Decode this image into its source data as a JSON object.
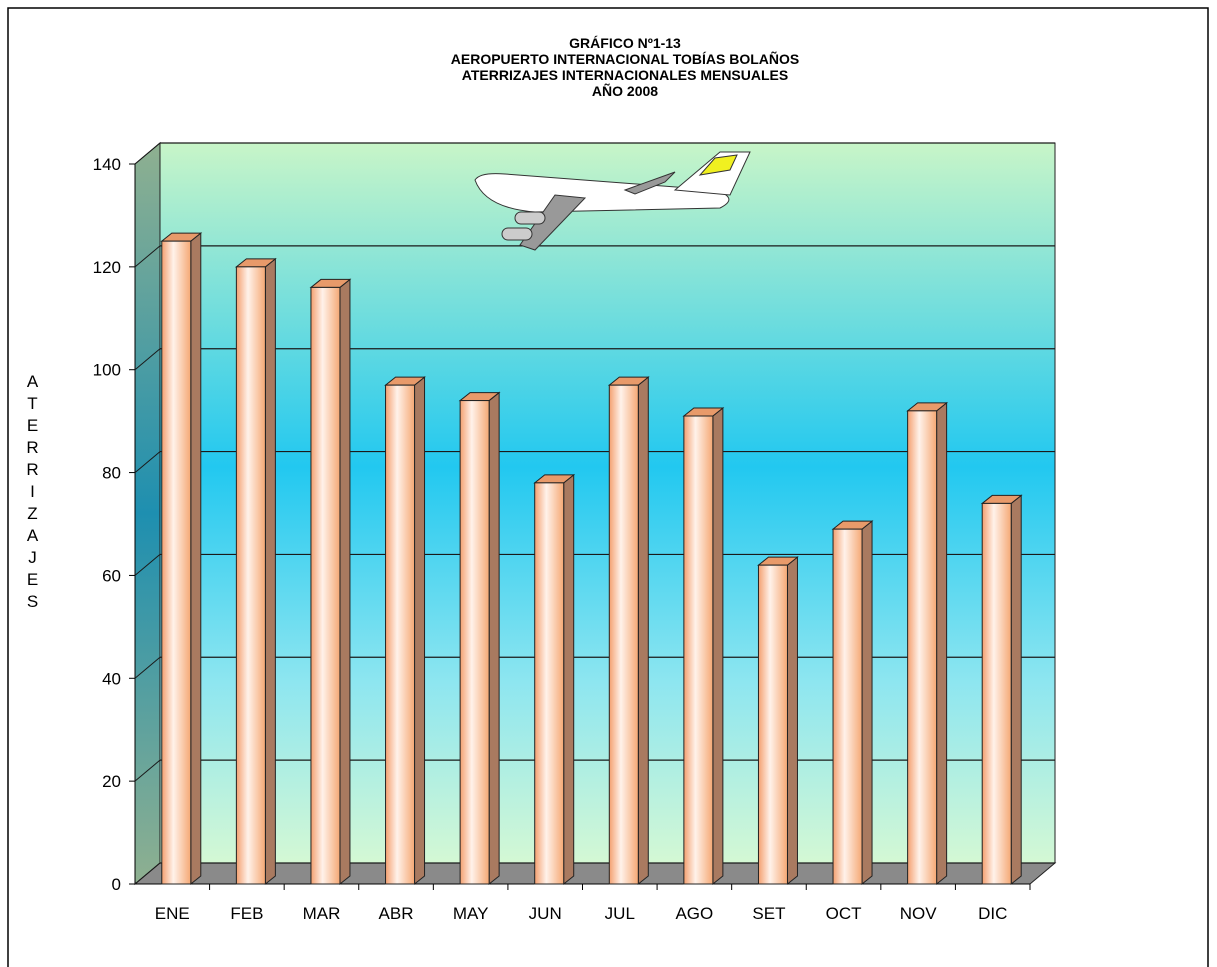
{
  "chart_data": {
    "type": "bar3d",
    "title_lines": [
      "GRÁFICO Nº1-13",
      "AEROPUERTO INTERNACIONAL TOBÍAS BOLAÑOS",
      "ATERRIZAJES INTERNACIONALES MENSUALES",
      "AÑO 2008"
    ],
    "y_label": "ATERRIZAJES",
    "categories": [
      "ENE",
      "FEB",
      "MAR",
      "ABR",
      "MAY",
      "JUN",
      "JUL",
      "AGO",
      "SET",
      "OCT",
      "NOV",
      "DIC"
    ],
    "values": [
      125,
      120,
      116,
      97,
      94,
      78,
      97,
      91,
      62,
      69,
      92,
      74
    ],
    "color": "#f5b88a",
    "ylim": [
      0,
      140
    ],
    "yticks": [
      0,
      20,
      40,
      60,
      80,
      100,
      120,
      140
    ],
    "grid": true
  }
}
